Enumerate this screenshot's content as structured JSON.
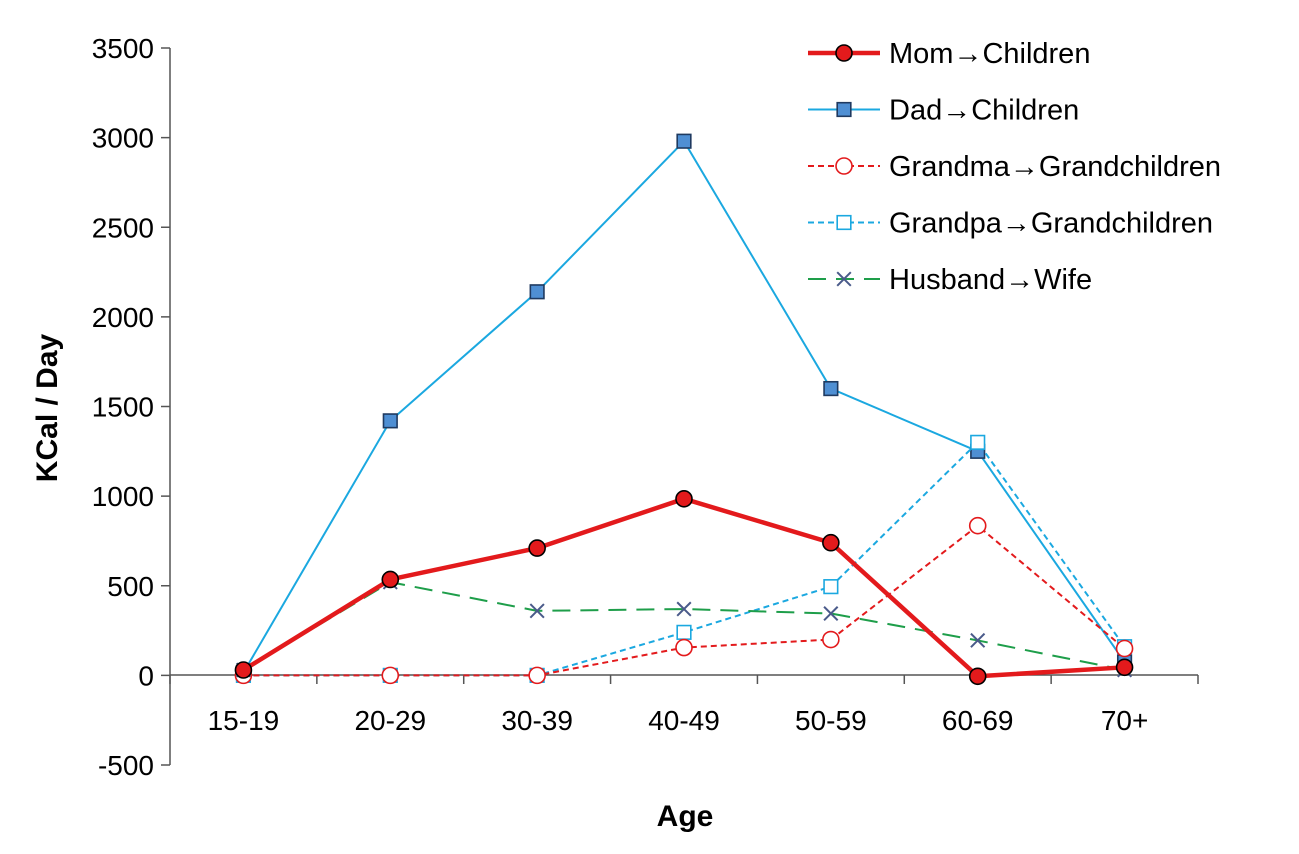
{
  "chart_data": {
    "type": "line",
    "title": "",
    "xlabel": "Age",
    "ylabel": "KCal / Day",
    "categories": [
      "15-19",
      "20-29",
      "30-39",
      "40-49",
      "50-59",
      "60-69",
      "70+"
    ],
    "ylim": [
      -500,
      3500
    ],
    "yticks": [
      -500,
      0,
      500,
      1000,
      1500,
      2000,
      2500,
      3000,
      3500
    ],
    "ytick_labels": [
      "-500",
      "0",
      "500",
      "1000",
      "1500",
      "2000",
      "2500",
      "3000",
      "3500"
    ],
    "grid": false,
    "legend_position": "top-right",
    "series": [
      {
        "name": "Mom→Children",
        "values": [
          30,
          535,
          710,
          985,
          740,
          -5,
          45
        ],
        "color": "#e31a1c",
        "line_style": "solid",
        "line_weight": "bold",
        "marker": "filled-circle",
        "marker_fill": "#e31a1c",
        "marker_stroke": "#000000"
      },
      {
        "name": "Dad→Children",
        "values": [
          15,
          1420,
          2140,
          2980,
          1600,
          1250,
          75
        ],
        "color": "#1ba8e0",
        "line_style": "solid",
        "line_weight": "normal",
        "marker": "filled-square",
        "marker_fill": "#4f8fd3",
        "marker_stroke": "#1f3a60"
      },
      {
        "name": "Grandma→Grandchildren",
        "values": [
          0,
          0,
          0,
          155,
          200,
          835,
          150
        ],
        "color": "#e31a1c",
        "line_style": "dotted",
        "line_weight": "normal",
        "marker": "open-circle",
        "marker_fill": "#ffffff",
        "marker_stroke": "#e31a1c"
      },
      {
        "name": "Grandpa→Grandchildren",
        "values": [
          0,
          0,
          0,
          240,
          495,
          1300,
          160
        ],
        "color": "#1ba8e0",
        "line_style": "dotted",
        "line_weight": "normal",
        "marker": "open-square",
        "marker_fill": "#ffffff",
        "marker_stroke": "#1ba8e0"
      },
      {
        "name": "Husband→Wife",
        "values": [
          30,
          520,
          360,
          370,
          345,
          195,
          30
        ],
        "color": "#1e9e4a",
        "line_style": "dashed",
        "line_weight": "normal",
        "marker": "x",
        "marker_fill": "none",
        "marker_stroke": "#4a5a8a"
      }
    ]
  }
}
